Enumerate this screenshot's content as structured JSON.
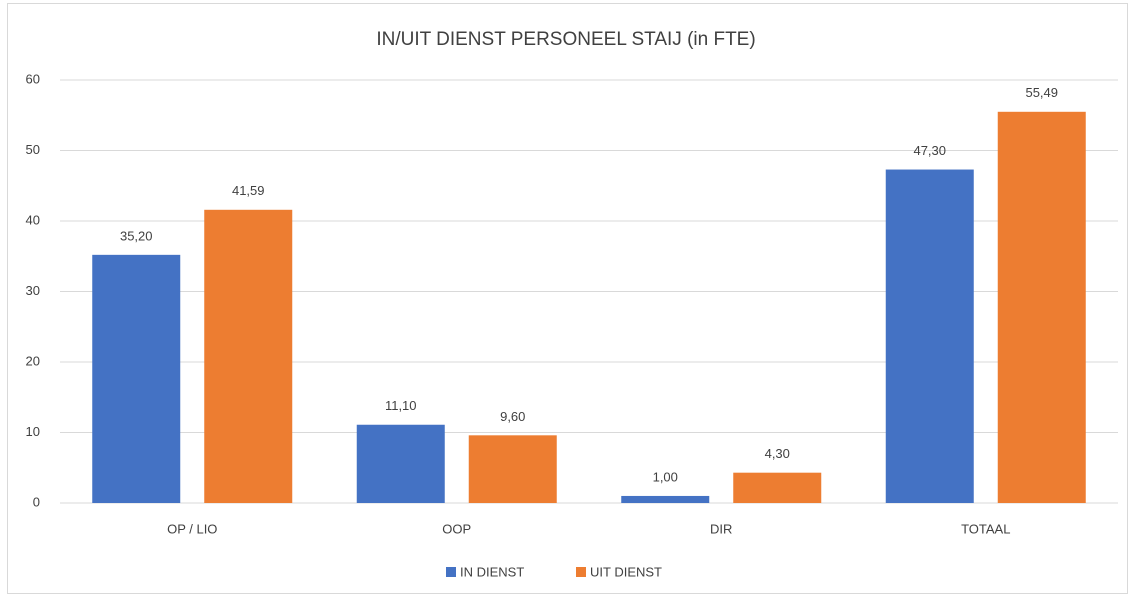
{
  "chart_data": {
    "type": "bar",
    "title": "IN/UIT DIENST PERSONEEL STAIJ (in FTE)",
    "categories": [
      "OP / LIO",
      "OOP",
      "DIR",
      "TOTAAL"
    ],
    "series": [
      {
        "name": "IN DIENST",
        "color": "#4472c4",
        "values": [
          35.2,
          11.1,
          1.0,
          47.3
        ],
        "value_labels": [
          "35,20",
          "11,10",
          "1,00",
          "47,30"
        ]
      },
      {
        "name": "UIT DIENST",
        "color": "#ed7d31",
        "values": [
          41.59,
          9.6,
          4.3,
          55.49
        ],
        "value_labels": [
          "41,59",
          "9,60",
          "4,30",
          "55,49"
        ]
      }
    ],
    "ylim": [
      0,
      60
    ],
    "yticks": [
      0,
      10,
      20,
      30,
      40,
      50,
      60
    ],
    "grid": true,
    "legend": "bottom"
  }
}
